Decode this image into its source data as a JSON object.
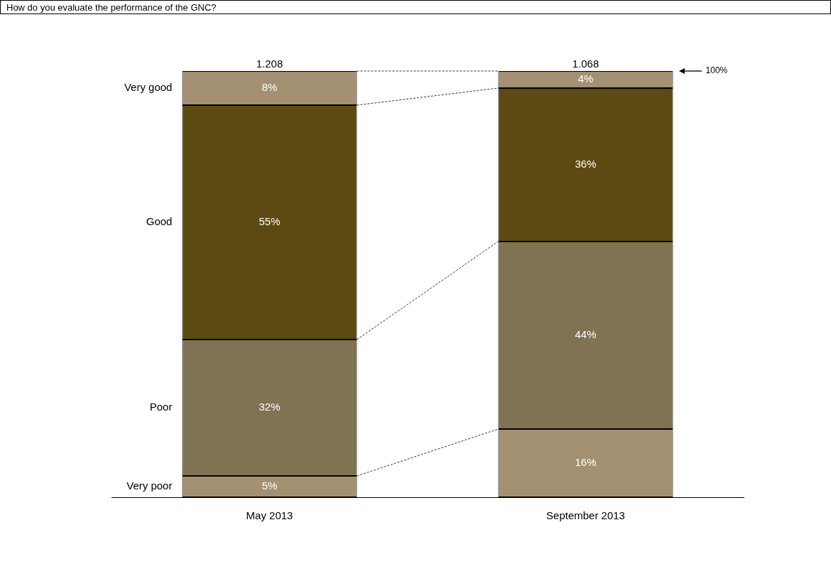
{
  "chart_data": {
    "type": "bar",
    "stacked": true,
    "title": "How do you evaluate the performance of the GNC?",
    "categories": [
      "May 2013",
      "September 2013"
    ],
    "series": [
      {
        "name": "Very poor",
        "color": "#a39171",
        "values": [
          5,
          16
        ],
        "value_labels": [
          "5%",
          "16%"
        ]
      },
      {
        "name": "Poor",
        "color": "#7f7354",
        "values": [
          32,
          44
        ],
        "value_labels": [
          "32%",
          "44%"
        ]
      },
      {
        "name": "Good",
        "color": "#5c4a12",
        "values": [
          55,
          36
        ],
        "value_labels": [
          "55%",
          "36%"
        ]
      },
      {
        "name": "Very good",
        "color": "#a39171",
        "values": [
          8,
          4
        ],
        "value_labels": [
          "8%",
          "4%"
        ]
      }
    ],
    "ylim": [
      0,
      100
    ],
    "annotations": [
      {
        "text": "1.208",
        "x": "May 2013",
        "y": 100
      },
      {
        "text": "1.068",
        "x": "September 2013",
        "y": 100
      },
      "100%"
    ],
    "grid": false,
    "legend": false
  }
}
